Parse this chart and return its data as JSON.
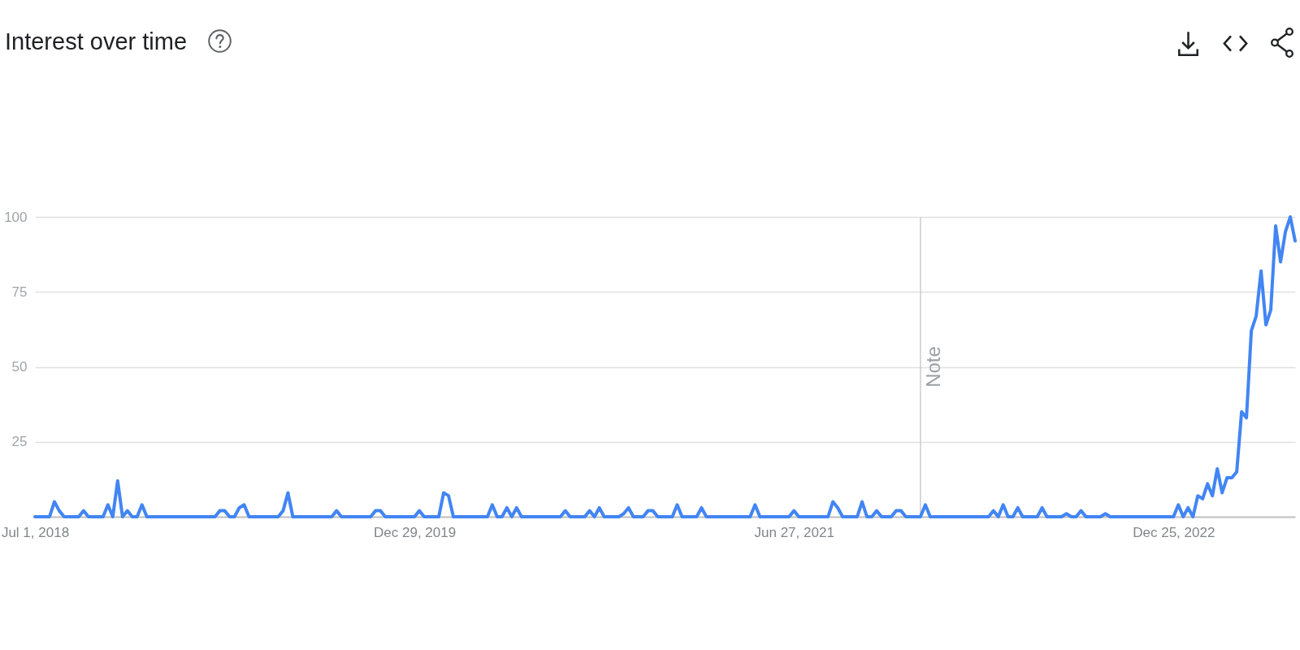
{
  "chart_data": {
    "type": "line",
    "title": "Interest over time",
    "x": [
      "2018-07-01",
      "2018-07-22",
      "2018-07-29",
      "2018-08-05",
      "2018-08-12",
      "2018-09-02",
      "2018-09-09",
      "2018-09-16",
      "2018-10-07",
      "2018-10-14",
      "2018-10-21",
      "2018-10-28",
      "2018-11-04",
      "2018-11-11",
      "2018-11-18",
      "2018-11-25",
      "2018-12-02",
      "2018-12-09",
      "2019-03-17",
      "2019-03-24",
      "2019-03-31",
      "2019-04-07",
      "2019-04-14",
      "2019-04-21",
      "2019-04-28",
      "2019-05-05",
      "2019-06-16",
      "2019-06-23",
      "2019-06-30",
      "2019-07-07",
      "2019-09-01",
      "2019-09-08",
      "2019-09-15",
      "2019-10-27",
      "2019-11-03",
      "2019-11-10",
      "2019-11-17",
      "2019-12-29",
      "2020-01-05",
      "2020-01-12",
      "2020-02-02",
      "2020-02-09",
      "2020-02-16",
      "2020-02-23",
      "2020-04-12",
      "2020-04-19",
      "2020-04-26",
      "2020-05-03",
      "2020-05-10",
      "2020-05-17",
      "2020-05-24",
      "2020-05-31",
      "2020-07-26",
      "2020-08-02",
      "2020-08-09",
      "2020-08-30",
      "2020-09-06",
      "2020-09-13",
      "2020-09-20",
      "2020-09-27",
      "2020-10-18",
      "2020-10-25",
      "2020-11-01",
      "2020-11-08",
      "2020-11-22",
      "2020-11-29",
      "2020-12-06",
      "2020-12-13",
      "2021-01-03",
      "2021-01-10",
      "2021-01-17",
      "2021-02-07",
      "2021-02-14",
      "2021-02-21",
      "2021-04-25",
      "2021-05-02",
      "2021-05-09",
      "2021-06-20",
      "2021-06-27",
      "2021-07-04",
      "2021-08-15",
      "2021-08-22",
      "2021-08-29",
      "2021-09-05",
      "2021-09-26",
      "2021-10-03",
      "2021-10-10",
      "2021-10-17",
      "2021-10-24",
      "2021-10-31",
      "2021-11-14",
      "2021-11-21",
      "2021-11-28",
      "2021-12-05",
      "2021-12-26",
      "2022-01-02",
      "2022-01-09",
      "2022-04-03",
      "2022-04-10",
      "2022-04-17",
      "2022-04-24",
      "2022-05-01",
      "2022-05-08",
      "2022-05-15",
      "2022-05-22",
      "2022-06-12",
      "2022-06-19",
      "2022-06-26",
      "2022-07-17",
      "2022-07-24",
      "2022-07-31",
      "2022-08-07",
      "2022-08-14",
      "2022-08-21",
      "2022-09-11",
      "2022-09-18",
      "2022-09-25",
      "2022-12-25",
      "2023-01-01",
      "2023-01-08",
      "2023-01-15",
      "2023-01-22",
      "2023-01-29",
      "2023-02-05",
      "2023-02-12",
      "2023-02-19",
      "2023-02-26",
      "2023-03-05",
      "2023-03-12",
      "2023-03-19",
      "2023-03-26",
      "2023-04-02",
      "2023-04-09",
      "2023-04-16",
      "2023-04-23",
      "2023-04-30",
      "2023-05-07",
      "2023-05-14",
      "2023-05-21",
      "2023-05-28",
      "2023-06-04",
      "2023-06-11",
      "2023-06-18"
    ],
    "values": [
      0,
      0,
      5,
      2,
      0,
      0,
      2,
      0,
      0,
      4,
      0,
      12,
      0,
      2,
      0,
      0,
      4,
      0,
      0,
      2,
      2,
      0,
      0,
      3,
      4,
      0,
      0,
      2,
      8,
      0,
      0,
      2,
      0,
      0,
      2,
      2,
      0,
      0,
      2,
      0,
      0,
      8,
      7,
      0,
      0,
      4,
      0,
      0,
      3,
      0,
      3,
      0,
      0,
      2,
      0,
      0,
      2,
      0,
      3,
      0,
      0,
      1,
      3,
      0,
      0,
      2,
      2,
      0,
      0,
      4,
      0,
      0,
      3,
      0,
      0,
      4,
      0,
      0,
      2,
      0,
      0,
      5,
      3,
      0,
      0,
      5,
      0,
      0,
      2,
      0,
      0,
      2,
      2,
      0,
      0,
      4,
      0,
      0,
      2,
      0,
      4,
      0,
      0,
      3,
      0,
      0,
      3,
      0,
      0,
      1,
      0,
      0,
      2,
      0,
      0,
      1,
      0,
      0,
      4,
      0,
      3,
      0,
      7,
      6,
      11,
      7,
      16,
      8,
      13,
      13,
      15,
      35,
      33,
      62,
      67,
      82,
      64,
      69,
      97,
      85,
      95,
      100,
      92
    ],
    "color": "#4285f4",
    "line_style": "solid",
    "xlim": [
      "2018-07-01",
      "2023-06-18"
    ],
    "xticks": [
      {
        "value": "2018-07-01",
        "label": "Jul 1, 2018"
      },
      {
        "value": "2019-12-29",
        "label": "Dec 29, 2019"
      },
      {
        "value": "2021-06-27",
        "label": "Jun 27, 2021"
      },
      {
        "value": "2022-12-25",
        "label": "Dec 25, 2022"
      }
    ],
    "ylim": [
      0,
      100
    ],
    "yticks": [
      25,
      50,
      75,
      100
    ],
    "grid": "y",
    "ref_lines": [
      {
        "axis": "x",
        "value": "2021-12-26",
        "label": "Note",
        "color": "#cccccc"
      }
    ]
  }
}
